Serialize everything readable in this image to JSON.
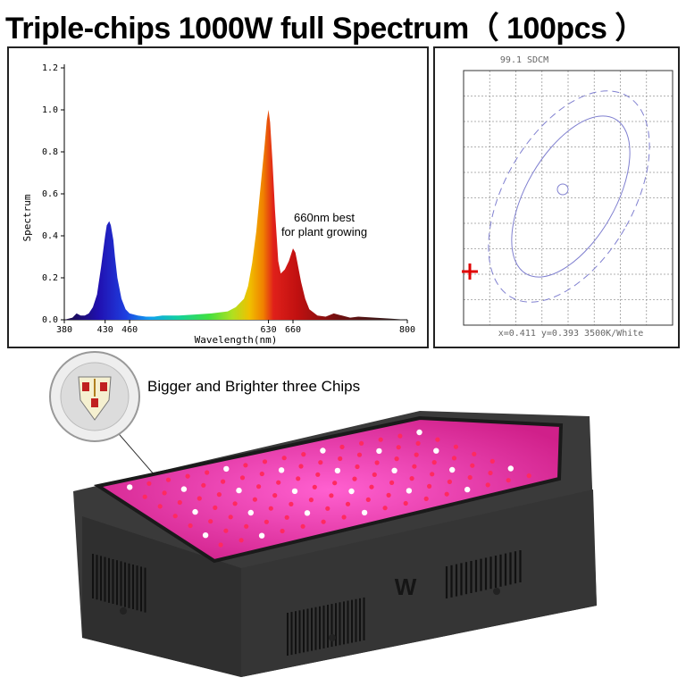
{
  "title": "Triple-chips 1000W full Spectrum（ 100pcs ）",
  "callout": {
    "label": "Bigger and Brighter three Chips",
    "icon": "triple-chip-led-icon"
  },
  "product": {
    "icon": "led-grow-light-panel",
    "logo": "W"
  },
  "colors": {
    "panel_body": "#3a3a3a",
    "led_face": "#e0309a",
    "spectrum_red": "#e0201a",
    "spectrum_blue": "#1f3fe0",
    "cie_ellipse": "#8080d0",
    "cie_marker": "#e00000"
  },
  "chart_data": [
    {
      "type": "area",
      "title": "",
      "xlabel": "Wavelength(nm)",
      "ylabel": "Spectrum",
      "xlim": [
        380,
        800
      ],
      "ylim": [
        0,
        1.2
      ],
      "yticks": [
        "0.0",
        "0.2",
        "0.4",
        "0.6",
        "0.8",
        "1.0",
        "1.2"
      ],
      "xticks": [
        {
          "value": 380,
          "label": "380"
        },
        {
          "value": 430,
          "label": "430"
        },
        {
          "value": 460,
          "label": "460"
        },
        {
          "value": 630,
          "label": "630"
        },
        {
          "value": 660,
          "label": "660"
        },
        {
          "value": 800,
          "label": "800"
        }
      ],
      "annotation": "660nm best\nfor plant growing",
      "series": [
        {
          "x": [
            380,
            390,
            395,
            400,
            405,
            410,
            415,
            420,
            425,
            430,
            432,
            435,
            437,
            440,
            442,
            445,
            450,
            455,
            460,
            470,
            480,
            490,
            500,
            520,
            540,
            560,
            580,
            590,
            600,
            605,
            610,
            615,
            620,
            625,
            628,
            630,
            632,
            635,
            638,
            640,
            642,
            645,
            650,
            655,
            660,
            663,
            665,
            670,
            675,
            680,
            690,
            700,
            710,
            720,
            730,
            740,
            760,
            780,
            800
          ],
          "y": [
            0.0,
            0.01,
            0.03,
            0.02,
            0.02,
            0.03,
            0.06,
            0.12,
            0.25,
            0.4,
            0.45,
            0.47,
            0.45,
            0.38,
            0.3,
            0.2,
            0.1,
            0.05,
            0.03,
            0.02,
            0.015,
            0.015,
            0.02,
            0.02,
            0.025,
            0.03,
            0.04,
            0.06,
            0.1,
            0.16,
            0.27,
            0.42,
            0.62,
            0.82,
            0.95,
            1.0,
            0.94,
            0.75,
            0.52,
            0.4,
            0.28,
            0.22,
            0.24,
            0.28,
            0.34,
            0.32,
            0.28,
            0.18,
            0.1,
            0.05,
            0.02,
            0.015,
            0.03,
            0.02,
            0.01,
            0.015,
            0.01,
            0.005,
            0.0
          ]
        }
      ]
    },
    {
      "type": "scatter",
      "title": "99.1 SDCM",
      "footer": "x=0.411 y=0.393 3500K/White",
      "grid": true,
      "grid_cols": 8,
      "grid_rows": 10
    }
  ]
}
